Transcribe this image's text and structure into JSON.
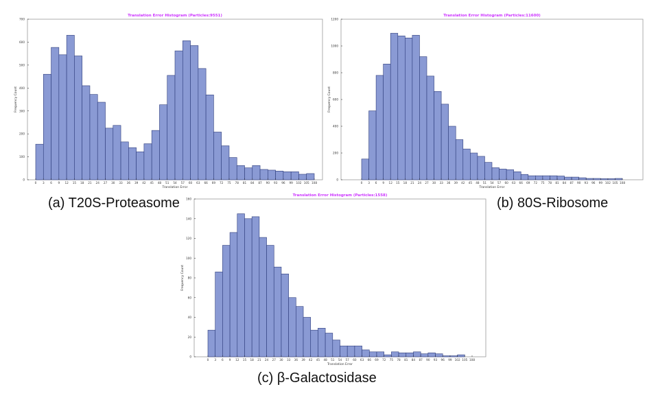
{
  "colors": {
    "bar_fill": "#8a9ad4",
    "bar_stroke": "#2c3b7a",
    "title": "#cc33ff",
    "axis": "#333333"
  },
  "captions": {
    "a": "(a) T20S-Proteasome",
    "b": "(b) 80S-Ribosome",
    "c": "(c) β-Galactosidase"
  },
  "chart_data": [
    {
      "type": "bar",
      "title": "Translation Error Histogram (Particles:9551)",
      "xlabel": "Translation Error",
      "ylabel": "Frequency Count",
      "ylim": [
        0,
        700
      ],
      "yticks": [
        0,
        100,
        200,
        300,
        400,
        500,
        600,
        700
      ],
      "xticks": [
        "0",
        "3",
        "6",
        "9",
        "12",
        "15",
        "18",
        "21",
        "24",
        "27",
        "30",
        "33",
        "36",
        "39",
        "42",
        "45",
        "48",
        "51",
        "54",
        "57",
        "60",
        "63",
        "66",
        "69",
        "72",
        "75",
        "78",
        "81",
        "84",
        "87",
        "90",
        "93",
        "96",
        "99",
        "102",
        "105",
        "108"
      ],
      "grid": false,
      "values": [
        155,
        460,
        577,
        545,
        630,
        540,
        410,
        372,
        338,
        225,
        237,
        165,
        140,
        122,
        157,
        215,
        327,
        455,
        562,
        606,
        585,
        485,
        370,
        208,
        148,
        97,
        62,
        52,
        62,
        45,
        42,
        38,
        35,
        35,
        24,
        27
      ]
    },
    {
      "type": "bar",
      "title": "Translation Error Histogram (Particles:11600)",
      "xlabel": "Translation Error",
      "ylabel": "Frequency Count",
      "ylim": [
        0,
        1200
      ],
      "yticks": [
        0,
        200,
        400,
        600,
        800,
        1000,
        1200
      ],
      "xticks": [
        "0",
        "3",
        "6",
        "9",
        "12",
        "15",
        "18",
        "21",
        "24",
        "27",
        "30",
        "33",
        "36",
        "39",
        "42",
        "45",
        "48",
        "51",
        "54",
        "57",
        "60",
        "63",
        "66",
        "69",
        "72",
        "75",
        "78",
        "81",
        "84",
        "87",
        "90",
        "93",
        "96",
        "99",
        "102",
        "105",
        "108"
      ],
      "grid": false,
      "values": [
        155,
        515,
        780,
        865,
        1095,
        1075,
        1060,
        1080,
        920,
        775,
        660,
        565,
        400,
        300,
        230,
        200,
        175,
        130,
        90,
        80,
        75,
        60,
        40,
        30,
        30,
        30,
        30,
        28,
        20,
        20,
        15,
        10,
        10,
        8,
        8,
        10
      ]
    },
    {
      "type": "bar",
      "title": "Translation Error Histogram (Particles:1558)",
      "xlabel": "Translation Error",
      "ylabel": "Frequency Count",
      "ylim": [
        0,
        160
      ],
      "yticks": [
        0,
        20,
        40,
        60,
        80,
        100,
        120,
        140,
        160
      ],
      "xticks": [
        "0",
        "3",
        "6",
        "9",
        "12",
        "15",
        "18",
        "21",
        "24",
        "27",
        "30",
        "33",
        "36",
        "39",
        "42",
        "45",
        "48",
        "51",
        "54",
        "57",
        "60",
        "63",
        "66",
        "69",
        "72",
        "75",
        "78",
        "81",
        "84",
        "87",
        "90",
        "93",
        "96",
        "99",
        "102",
        "105",
        "108"
      ],
      "grid": false,
      "values": [
        27,
        86,
        113,
        126,
        145,
        140,
        142,
        121,
        113,
        91,
        84,
        60,
        51,
        40,
        27,
        29,
        24,
        17,
        11,
        11,
        11,
        7,
        5,
        5,
        2,
        5,
        4,
        4,
        5,
        3,
        4,
        3,
        1,
        1,
        2,
        0
      ]
    }
  ]
}
